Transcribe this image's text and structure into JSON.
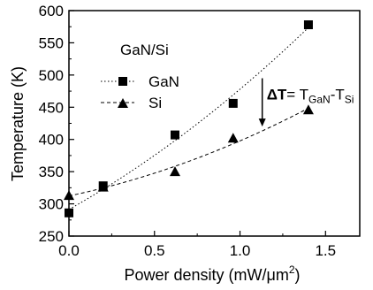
{
  "chart_data": {
    "type": "scatter",
    "xlabel_main": "Power density (mW/",
    "xlabel_mu": "μm",
    "xlabel_sup": "2",
    "xlabel_close": ")",
    "ylabel": "Temperature  (K)",
    "xlim": [
      0.0,
      1.7
    ],
    "ylim": [
      250,
      600
    ],
    "x_ticks": [
      "0.0",
      "0.5",
      "1.0",
      "1.5"
    ],
    "x_tick_values": [
      0.0,
      0.5,
      1.0,
      1.5
    ],
    "y_ticks": [
      "250",
      "300",
      "350",
      "400",
      "450",
      "500",
      "550",
      "600"
    ],
    "y_tick_values": [
      250,
      300,
      350,
      400,
      450,
      500,
      550,
      600
    ],
    "legend_title": "GaN/Si",
    "legend_position": "top-left",
    "series": [
      {
        "name": "GaN",
        "marker": "square",
        "line_style": "dotted",
        "x": [
          0.0,
          0.2,
          0.62,
          0.96,
          1.4
        ],
        "y": [
          286,
          328,
          407,
          456,
          578
        ]
      },
      {
        "name": "Si",
        "marker": "triangle",
        "line_style": "dashed",
        "x": [
          0.0,
          0.2,
          0.62,
          0.96,
          1.4
        ],
        "y": [
          313,
          326,
          350,
          402,
          446
        ]
      }
    ],
    "annotation": {
      "delta": "ΔT",
      "eq": "= T",
      "sub1": "GaN",
      "dash": "-T",
      "sub2": "Si",
      "arrow_x": 1.13,
      "arrow_y_top": 495,
      "arrow_y_bottom": 420
    }
  }
}
